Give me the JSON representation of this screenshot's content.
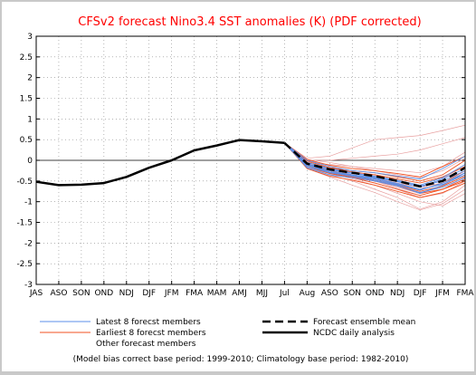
{
  "chart_data": {
    "type": "line",
    "title": "CFSv2 forecast Nino3.4 SST anomalies (K) (PDF corrected)",
    "categories": [
      "JAS",
      "ASO",
      "SON",
      "OND",
      "NDJ",
      "DJF",
      "JFM",
      "FMA",
      "MAM",
      "AMJ",
      "MJJ",
      "Jul",
      "Aug",
      "ASO",
      "SON",
      "OND",
      "NDJ",
      "DJF",
      "JFM",
      "FMA"
    ],
    "ylim": [
      -3,
      3
    ],
    "yticks": [
      -3,
      -2.5,
      -2,
      -1.5,
      -1,
      -0.5,
      0,
      0.5,
      1,
      1.5,
      2,
      2.5,
      3
    ],
    "grid": true,
    "observed": {
      "name": "NCDC daily analysis",
      "values": [
        -0.52,
        -0.6,
        -0.59,
        -0.55,
        -0.4,
        -0.18,
        0.0,
        0.24,
        0.36,
        0.49,
        0.46,
        0.42
      ]
    },
    "ensemble_mean": {
      "name": "Forecast ensemble mean",
      "values": [
        0.42,
        -0.08,
        -0.22,
        -0.3,
        -0.38,
        -0.5,
        -0.63,
        -0.5,
        -0.18
      ]
    },
    "latest_members": [
      [
        0.42,
        -0.15,
        -0.3,
        -0.38,
        -0.45,
        -0.58,
        -0.72,
        -0.55,
        -0.3
      ],
      [
        0.42,
        -0.1,
        -0.25,
        -0.35,
        -0.42,
        -0.52,
        -0.65,
        -0.45,
        -0.2
      ],
      [
        0.42,
        -0.05,
        -0.2,
        -0.3,
        -0.38,
        -0.48,
        -0.6,
        -0.42,
        -0.1
      ],
      [
        0.42,
        -0.12,
        -0.28,
        -0.36,
        -0.44,
        -0.56,
        -0.7,
        -0.58,
        -0.35
      ],
      [
        0.42,
        0.0,
        -0.15,
        -0.25,
        -0.3,
        -0.38,
        -0.45,
        -0.2,
        0.1
      ],
      [
        0.42,
        -0.08,
        -0.22,
        -0.32,
        -0.4,
        -0.5,
        -0.62,
        -0.5,
        -0.25
      ],
      [
        0.42,
        -0.18,
        -0.35,
        -0.42,
        -0.5,
        -0.62,
        -0.78,
        -0.65,
        -0.42
      ],
      [
        0.42,
        -0.1,
        -0.28,
        -0.38,
        -0.48,
        -0.6,
        -0.8,
        -0.6,
        -0.3
      ]
    ],
    "earliest_members": [
      [
        0.42,
        -0.05,
        -0.2,
        -0.28,
        -0.35,
        -0.45,
        -0.55,
        -0.4,
        -0.15
      ],
      [
        0.42,
        -0.12,
        -0.3,
        -0.4,
        -0.5,
        -0.62,
        -0.8,
        -0.7,
        -0.45
      ],
      [
        0.42,
        -0.02,
        -0.18,
        -0.25,
        -0.3,
        -0.4,
        -0.5,
        -0.35,
        0.0
      ],
      [
        0.42,
        -0.15,
        -0.32,
        -0.42,
        -0.55,
        -0.7,
        -0.85,
        -0.7,
        -0.5
      ],
      [
        0.42,
        -0.08,
        -0.25,
        -0.35,
        -0.45,
        -0.58,
        -0.72,
        -0.55,
        -0.25
      ],
      [
        0.42,
        -0.2,
        -0.38,
        -0.48,
        -0.6,
        -0.75,
        -0.9,
        -0.78,
        -0.55
      ],
      [
        0.42,
        0.02,
        -0.12,
        -0.2,
        -0.25,
        -0.32,
        -0.4,
        -0.15,
        0.1
      ],
      [
        0.42,
        -0.1,
        -0.28,
        -0.38,
        -0.48,
        -0.6,
        -0.75,
        -0.62,
        -0.38
      ]
    ],
    "other_members": [
      [
        0.42,
        0.05,
        0.1,
        0.3,
        0.5,
        0.55,
        0.6,
        0.72,
        0.85
      ],
      [
        0.42,
        0.0,
        0.0,
        0.05,
        0.1,
        0.15,
        0.25,
        0.4,
        0.55
      ],
      [
        0.42,
        -0.05,
        -0.1,
        -0.15,
        -0.2,
        -0.25,
        -0.3,
        -0.15,
        0.2
      ],
      [
        0.42,
        -0.1,
        -0.3,
        -0.45,
        -0.6,
        -0.8,
        -1.0,
        -1.1,
        -0.8
      ],
      [
        0.42,
        -0.15,
        -0.35,
        -0.5,
        -0.7,
        -0.9,
        -1.18,
        -1.0,
        -0.6
      ],
      [
        0.42,
        -0.2,
        -0.4,
        -0.6,
        -0.78,
        -1.0,
        -1.2,
        -1.05,
        -0.7
      ],
      [
        0.42,
        -0.05,
        -0.2,
        -0.35,
        -0.5,
        -0.68,
        -0.85,
        -0.7,
        -0.4
      ],
      [
        0.42,
        0.0,
        -0.15,
        -0.3,
        -0.42,
        -0.55,
        -0.7,
        -0.45,
        -0.1
      ],
      [
        0.42,
        -0.12,
        -0.25,
        -0.4,
        -0.55,
        -0.7,
        -0.9,
        -0.8,
        -0.5
      ],
      [
        0.42,
        -0.18,
        -0.3,
        -0.35,
        -0.45,
        -0.55,
        -0.65,
        -0.55,
        -0.35
      ],
      [
        0.42,
        0.02,
        -0.05,
        -0.15,
        -0.25,
        -0.35,
        -0.42,
        -0.25,
        0.05
      ],
      [
        0.42,
        -0.08,
        -0.22,
        -0.38,
        -0.5,
        -0.65,
        -0.8,
        -0.62,
        -0.3
      ]
    ],
    "colors": {
      "latest": "#5b8fe8",
      "earliest": "#f05020",
      "other": "#e8a0a0",
      "observed": "#000000",
      "mean": "#000000",
      "title": "#ff0000",
      "grid": "#888888"
    }
  },
  "legend": {
    "latest": "Latest 8 forecst members",
    "earliest": "Earliest 8 forecst members",
    "other": "Other forecast members",
    "mean": "Forecast ensemble mean",
    "observed": "NCDC daily analysis"
  },
  "footer": "(Model bias correct base period: 1999-2010; Climatology base period: 1982-2010)"
}
